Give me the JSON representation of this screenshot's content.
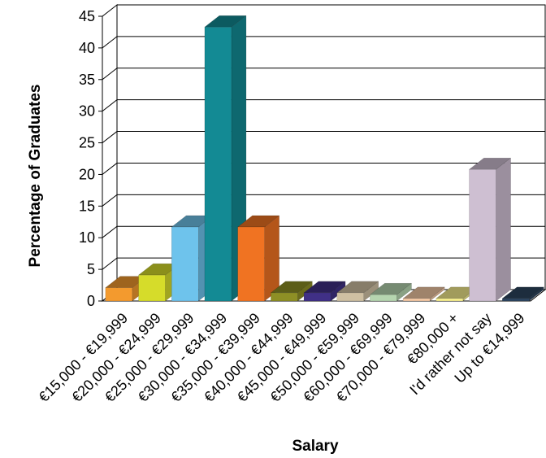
{
  "chart_data": {
    "type": "bar",
    "title": "",
    "xlabel": "Salary",
    "ylabel": "Percentage of Graduates",
    "ylim": [
      0,
      45
    ],
    "yticks": [
      0,
      5,
      10,
      15,
      20,
      25,
      30,
      35,
      40,
      45
    ],
    "grid": true,
    "legend": "none",
    "categories": [
      "€15,000 - €19,999",
      "€20,000 - €24,999",
      "€25,000 - €29,999",
      "€30,000 - €34,999",
      "€35,000 - €39,999",
      "€40,000 - €44,999",
      "€45,000 - €49,999",
      "€50,000 - €59,999",
      "€60,000 - €69,999",
      "€70,000 - €79,999",
      "€80,000 +",
      "I'd rather not say",
      "Up to €14,999"
    ],
    "values": [
      2.1,
      4.1,
      11.7,
      43.3,
      11.7,
      1.3,
      1.3,
      1.3,
      1.0,
      0.4,
      0.4,
      20.8,
      0.4
    ],
    "colors": [
      "#f39a2e",
      "#d6dc2a",
      "#6ec3ec",
      "#138a94",
      "#f07322",
      "#8e8f25",
      "#403086",
      "#cfc0a2",
      "#b6d6b0",
      "#f5c9a5",
      "#f7ef8e",
      "#cebfd2",
      "#2d4560"
    ]
  }
}
